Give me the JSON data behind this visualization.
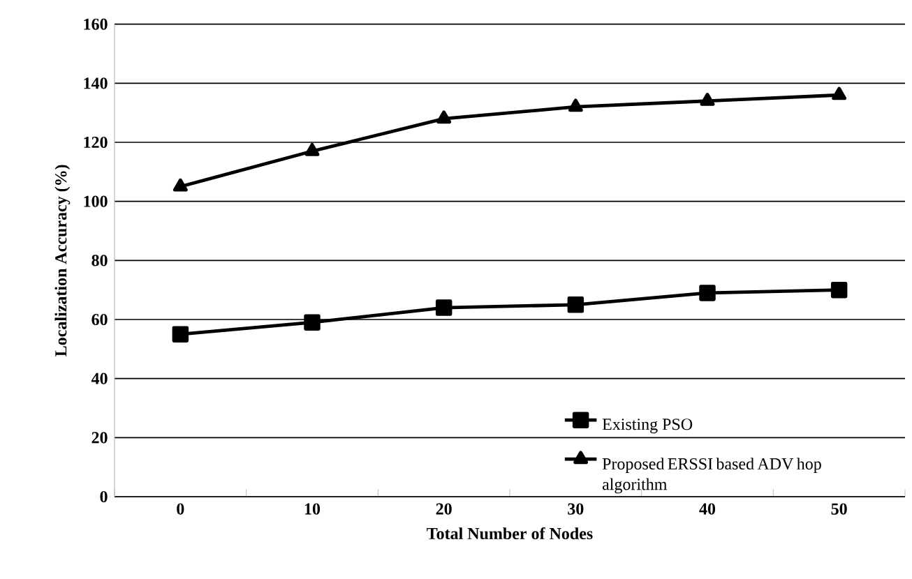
{
  "chart_data": {
    "type": "line",
    "xlabel": "Total Number of Nodes",
    "ylabel": "Localization Accuracy (%)",
    "categories": [
      "0",
      "10",
      "20",
      "30",
      "40",
      "50"
    ],
    "series": [
      {
        "name": "Existing PSO",
        "color": "#000000",
        "marker": "square",
        "values": [
          55,
          59,
          64,
          65,
          69,
          70
        ]
      },
      {
        "name": "Proposed ERSSI based ADV hop algorithm",
        "color": "#000000",
        "marker": "triangle",
        "values": [
          105,
          117,
          128,
          132,
          134,
          136
        ]
      }
    ],
    "ylim": [
      0,
      160
    ],
    "yticks": [
      0,
      20,
      40,
      60,
      80,
      100,
      120,
      140,
      160
    ],
    "grid": "y",
    "legend": "bottom right",
    "line_style": "solid"
  }
}
